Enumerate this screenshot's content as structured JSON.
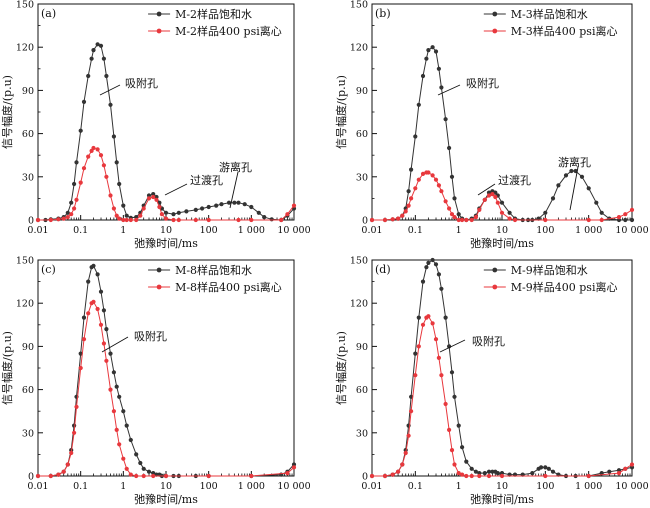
{
  "chart_data": [
    {
      "type": "line",
      "panel_label": "(a)",
      "xlabel": "弛豫时间/ms",
      "ylabel": "信号幅度/(p.u)",
      "x_scale": "log",
      "xlim": [
        0.01,
        10000
      ],
      "ylim": [
        0,
        150
      ],
      "x_ticks": [
        "0.01",
        "0.1",
        "1",
        "10",
        "100",
        "1 000",
        "10 000"
      ],
      "y_ticks": [
        "0",
        "30",
        "60",
        "90",
        "120",
        "150"
      ],
      "legend_position": "top-right",
      "series": [
        {
          "name": "M-2样品饱和水",
          "color": "#333333",
          "x": [
            0.01,
            0.015,
            0.02,
            0.03,
            0.04,
            0.05,
            0.06,
            0.07,
            0.08,
            0.1,
            0.12,
            0.15,
            0.18,
            0.2,
            0.25,
            0.3,
            0.35,
            0.4,
            0.5,
            0.6,
            0.7,
            0.8,
            1,
            1.2,
            1.5,
            2,
            2.5,
            3,
            4,
            5,
            6,
            7,
            8,
            10,
            15,
            20,
            30,
            50,
            70,
            100,
            150,
            200,
            300,
            400,
            500,
            700,
            1000,
            1500,
            2000,
            3000,
            5000,
            7000,
            10000
          ],
          "y": [
            0,
            0,
            0.5,
            1,
            2,
            5,
            12,
            25,
            40,
            62,
            82,
            100,
            112,
            118,
            122,
            121,
            112,
            100,
            80,
            58,
            40,
            25,
            10,
            3,
            1.5,
            2,
            5,
            10,
            17,
            18,
            16,
            12,
            8,
            5,
            4,
            5,
            6,
            7,
            8,
            9,
            10,
            11,
            12,
            12,
            12,
            11,
            9,
            5,
            2,
            0.5,
            0,
            3,
            8
          ]
        },
        {
          "name": "M-2样品400 psi离心",
          "color": "#e8383d",
          "x": [
            0.01,
            0.02,
            0.03,
            0.04,
            0.05,
            0.06,
            0.07,
            0.08,
            0.1,
            0.12,
            0.15,
            0.18,
            0.2,
            0.25,
            0.3,
            0.35,
            0.4,
            0.5,
            0.6,
            0.7,
            0.8,
            1,
            1.2,
            1.5,
            2,
            2.5,
            3,
            4,
            5,
            6,
            7,
            8,
            10,
            15,
            20,
            50,
            100,
            500,
            1000,
            5000,
            7000,
            10000
          ],
          "y": [
            0,
            0,
            0.5,
            1,
            2,
            4,
            8,
            14,
            26,
            36,
            44,
            48,
            50,
            49,
            45,
            38,
            30,
            17,
            8,
            3,
            1,
            0,
            0,
            0,
            0,
            3,
            8,
            15,
            16,
            14,
            9,
            4,
            1,
            0,
            0,
            0,
            0,
            0,
            0,
            0,
            4,
            10
          ]
        }
      ],
      "annotations": [
        {
          "text": "吸附孔"
        },
        {
          "text": "过渡孔"
        },
        {
          "text": "游离孔"
        }
      ]
    },
    {
      "type": "line",
      "panel_label": "(b)",
      "xlabel": "弛豫时间/ms",
      "ylabel": "信号幅度/(p.u)",
      "x_scale": "log",
      "xlim": [
        0.01,
        10000
      ],
      "ylim": [
        0,
        150
      ],
      "x_ticks": [
        "0.01",
        "0.1",
        "1",
        "10",
        "100",
        "1 000",
        "10 000"
      ],
      "y_ticks": [
        "0",
        "30",
        "60",
        "90",
        "120",
        "150"
      ],
      "legend_position": "top-right",
      "series": [
        {
          "name": "M-3样品饱和水",
          "color": "#333333",
          "x": [
            0.01,
            0.02,
            0.03,
            0.04,
            0.05,
            0.06,
            0.07,
            0.08,
            0.1,
            0.12,
            0.15,
            0.18,
            0.2,
            0.25,
            0.3,
            0.35,
            0.4,
            0.5,
            0.6,
            0.7,
            0.8,
            1,
            1.2,
            1.5,
            2,
            2.5,
            3,
            4,
            5,
            6,
            7,
            8,
            10,
            15,
            20,
            30,
            40,
            50,
            70,
            100,
            150,
            200,
            300,
            400,
            500,
            700,
            1000,
            1500,
            2000,
            3000,
            5000,
            7000,
            10000
          ],
          "y": [
            0,
            0,
            0.5,
            1,
            3,
            8,
            20,
            35,
            58,
            80,
            100,
            112,
            118,
            120,
            117,
            105,
            92,
            70,
            50,
            30,
            15,
            4,
            1,
            0,
            1,
            3,
            8,
            14,
            19,
            20,
            19,
            17,
            12,
            5,
            1,
            0,
            0,
            0,
            1,
            5,
            15,
            24,
            31,
            34,
            34,
            30,
            22,
            12,
            5,
            1,
            0,
            0,
            0
          ]
        },
        {
          "name": "M-3样品400 psi离心",
          "color": "#e8383d",
          "x": [
            0.01,
            0.02,
            0.03,
            0.04,
            0.05,
            0.06,
            0.07,
            0.08,
            0.1,
            0.12,
            0.15,
            0.18,
            0.2,
            0.25,
            0.3,
            0.35,
            0.4,
            0.5,
            0.6,
            0.7,
            0.8,
            1,
            1.2,
            1.5,
            2,
            2.5,
            3,
            4,
            5,
            6,
            7,
            8,
            10,
            15,
            20,
            100,
            1000,
            2000,
            5000,
            7000,
            10000
          ],
          "y": [
            0,
            0,
            0.5,
            1,
            3,
            6,
            10,
            15,
            22,
            28,
            32,
            33,
            33,
            31,
            28,
            24,
            20,
            13,
            8,
            4,
            2,
            0,
            0,
            0,
            0,
            2,
            7,
            14,
            17,
            18,
            16,
            12,
            5,
            1,
            0,
            0,
            0,
            0,
            2,
            4,
            7
          ]
        }
      ],
      "annotations": [
        {
          "text": "吸附孔"
        },
        {
          "text": "过渡孔"
        },
        {
          "text": "游离孔"
        }
      ]
    },
    {
      "type": "line",
      "panel_label": "(c)",
      "xlabel": "弛豫时间/ms",
      "ylabel": "信号幅度/(p.u)",
      "x_scale": "log",
      "xlim": [
        0.01,
        10000
      ],
      "ylim": [
        0,
        150
      ],
      "x_ticks": [
        "0.01",
        "0.1",
        "1",
        "10",
        "100",
        "1 000",
        "10 000"
      ],
      "y_ticks": [
        "0",
        "30",
        "60",
        "90",
        "120",
        "150"
      ],
      "legend_position": "top-right",
      "series": [
        {
          "name": "M-8样品饱和水",
          "color": "#333333",
          "x": [
            0.01,
            0.02,
            0.03,
            0.04,
            0.05,
            0.06,
            0.07,
            0.08,
            0.1,
            0.12,
            0.15,
            0.18,
            0.2,
            0.25,
            0.3,
            0.35,
            0.4,
            0.5,
            0.6,
            0.7,
            0.8,
            1,
            1.2,
            1.5,
            2,
            2.5,
            3,
            4,
            5,
            6,
            7,
            8,
            10,
            15,
            20,
            50,
            100,
            1000,
            5000,
            7000,
            10000
          ],
          "y": [
            0,
            0,
            1,
            3,
            8,
            18,
            35,
            55,
            85,
            110,
            135,
            145,
            146,
            140,
            128,
            115,
            102,
            85,
            72,
            62,
            55,
            45,
            35,
            25,
            15,
            9,
            5,
            3,
            2,
            1,
            1,
            0,
            0,
            0,
            0,
            0,
            0,
            0,
            1,
            3,
            8
          ]
        },
        {
          "name": "M-8样品400 psi离心",
          "color": "#e8383d",
          "x": [
            0.01,
            0.02,
            0.03,
            0.04,
            0.05,
            0.06,
            0.07,
            0.08,
            0.1,
            0.12,
            0.15,
            0.18,
            0.2,
            0.25,
            0.3,
            0.35,
            0.4,
            0.5,
            0.6,
            0.7,
            0.8,
            1,
            1.2,
            1.5,
            2,
            3,
            5,
            10,
            100,
            1000,
            7000,
            10000
          ],
          "y": [
            0,
            0,
            1,
            3,
            8,
            16,
            30,
            48,
            75,
            95,
            113,
            120,
            121,
            116,
            105,
            92,
            80,
            60,
            45,
            32,
            22,
            12,
            5,
            1,
            0,
            0,
            0,
            0,
            0,
            0,
            2,
            6
          ]
        }
      ],
      "annotations": [
        {
          "text": "吸附孔"
        }
      ]
    },
    {
      "type": "line",
      "panel_label": "(d)",
      "xlabel": "弛豫时间/ms",
      "ylabel": "信号幅度/(p.u)",
      "x_scale": "log",
      "xlim": [
        0.01,
        10000
      ],
      "ylim": [
        0,
        150
      ],
      "x_ticks": [
        "0.01",
        "0.1",
        "1",
        "10",
        "100",
        "1 000",
        "10 000"
      ],
      "y_ticks": [
        "0",
        "30",
        "60",
        "90",
        "120",
        "150"
      ],
      "legend_position": "top-right",
      "series": [
        {
          "name": "M-9样品饱和水",
          "color": "#333333",
          "x": [
            0.01,
            0.02,
            0.03,
            0.04,
            0.05,
            0.06,
            0.07,
            0.08,
            0.1,
            0.12,
            0.15,
            0.18,
            0.2,
            0.25,
            0.3,
            0.35,
            0.4,
            0.5,
            0.6,
            0.7,
            0.8,
            1,
            1.2,
            1.5,
            2,
            2.5,
            3,
            4,
            5,
            6,
            7,
            8,
            10,
            15,
            20,
            30,
            50,
            70,
            80,
            100,
            120,
            150,
            200,
            300,
            500,
            1000,
            2000,
            3000,
            5000,
            7000,
            10000
          ],
          "y": [
            0,
            0,
            1,
            3,
            8,
            18,
            35,
            55,
            85,
            110,
            135,
            145,
            148,
            150,
            147,
            140,
            130,
            110,
            90,
            72,
            55,
            35,
            20,
            10,
            5,
            3,
            2,
            2,
            3,
            3,
            3,
            2,
            2,
            1,
            1,
            1,
            2,
            5,
            6,
            6,
            5,
            3,
            1,
            0,
            0,
            0,
            2,
            3,
            4,
            5,
            6
          ]
        },
        {
          "name": "M-9样品400 psi离心",
          "color": "#e8383d",
          "x": [
            0.01,
            0.02,
            0.03,
            0.04,
            0.05,
            0.06,
            0.07,
            0.08,
            0.1,
            0.12,
            0.15,
            0.18,
            0.2,
            0.25,
            0.3,
            0.35,
            0.4,
            0.5,
            0.6,
            0.7,
            0.8,
            1,
            1.2,
            1.5,
            2,
            3,
            5,
            10,
            100,
            1000,
            5000,
            7000,
            10000
          ],
          "y": [
            0,
            0,
            1,
            3,
            8,
            16,
            28,
            45,
            70,
            90,
            105,
            110,
            111,
            106,
            95,
            82,
            70,
            50,
            32,
            18,
            8,
            2,
            1,
            0,
            0,
            0,
            0,
            0,
            0,
            0,
            2,
            5,
            8
          ]
        }
      ],
      "annotations": [
        {
          "text": "吸附孔"
        }
      ]
    }
  ]
}
